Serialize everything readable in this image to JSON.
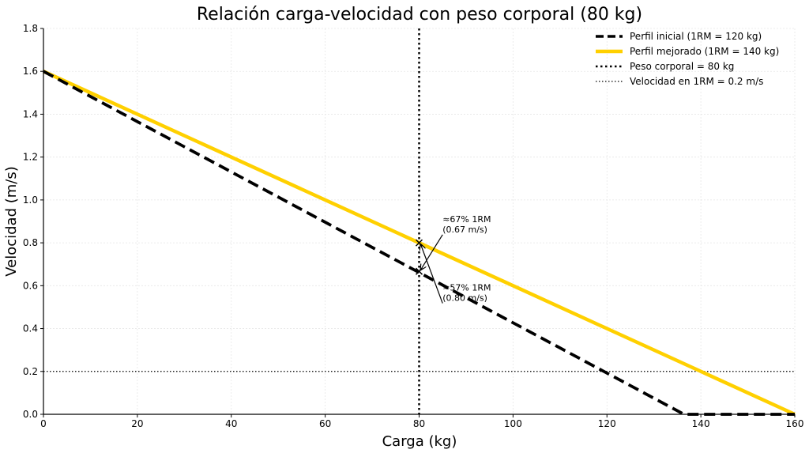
{
  "chart_data": {
    "type": "line",
    "title": "Relación carga-velocidad con peso corporal (80 kg)",
    "xlabel": "Carga (kg)",
    "ylabel": "Velocidad (m/s)",
    "xlim": [
      0,
      160
    ],
    "ylim": [
      0,
      1.8
    ],
    "x_ticks": [
      0,
      20,
      40,
      60,
      80,
      100,
      120,
      140,
      160
    ],
    "y_ticks": [
      0.0,
      0.2,
      0.4,
      0.6,
      0.8,
      1.0,
      1.2,
      1.4,
      1.6,
      1.8
    ],
    "x_tick_labels": [
      "0",
      "20",
      "40",
      "60",
      "80",
      "100",
      "120",
      "140",
      "160"
    ],
    "y_tick_labels": [
      "0.0",
      "0.2",
      "0.4",
      "0.6",
      "0.8",
      "1.0",
      "1.2",
      "1.4",
      "1.6",
      "1.8"
    ],
    "grid": true,
    "legend_position": "top-right",
    "series": [
      {
        "name": "Perfil inicial (1RM = 120 kg)",
        "style": "dashed",
        "color": "#000000",
        "x": [
          0,
          136.4,
          160
        ],
        "y": [
          1.6,
          0.0,
          0.0
        ]
      },
      {
        "name": "Perfil mejorado (1RM = 140 kg)",
        "style": "solid",
        "color": "#FFD000",
        "x": [
          0,
          160
        ],
        "y": [
          1.6,
          0.0
        ]
      }
    ],
    "reference_lines": [
      {
        "name": "Peso corporal = 80 kg",
        "orientation": "vertical",
        "value": 80,
        "style": "dotted",
        "color": "#000000"
      },
      {
        "name": "Velocidad en 1RM = 0.2 m/s",
        "orientation": "horizontal",
        "value": 0.2,
        "style": "dotted-thin",
        "color": "#000000"
      }
    ],
    "markers": [
      {
        "x": 80,
        "y": 0.8
      },
      {
        "x": 80,
        "y": 0.667
      }
    ],
    "annotations": [
      {
        "lines": [
          "≈67% 1RM",
          "(0.67 m/s)"
        ],
        "text_x": 85,
        "text_y": 0.86,
        "arrow_to_x": 80,
        "arrow_to_y": 0.667
      },
      {
        "lines": [
          "≈57% 1RM",
          "(0.80 m/s)"
        ],
        "text_x": 85,
        "text_y": 0.54,
        "arrow_to_x": 80,
        "arrow_to_y": 0.8
      }
    ]
  }
}
